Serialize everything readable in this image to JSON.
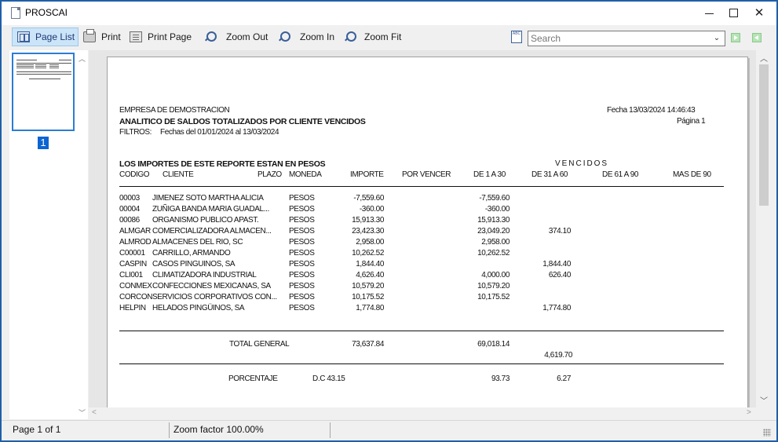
{
  "window": {
    "title": "PROSCAI"
  },
  "toolbar": {
    "page_list": "Page List",
    "print": "Print",
    "print_page": "Print Page",
    "zoom_out": "Zoom Out",
    "zoom_in": "Zoom In",
    "zoom_fit": "Zoom Fit",
    "search_placeholder": "Search",
    "spell_icon_text": "ABC"
  },
  "thumbnails": {
    "page_number": "1"
  },
  "report": {
    "company": "EMPRESA DE DEMOSTRACION",
    "title": "ANALITICO DE SALDOS  TOTALIZADOS POR CLIENTE VENCIDOS",
    "filters_label": "FILTROS:",
    "filters_value": "Fechas del 01/01/2024 al 13/03/2024",
    "date": "Fecha 13/03/2024 14:46:43",
    "page": "Página 1",
    "currency_note": "LOS IMPORTES DE ESTE REPORTE ESTAN EN PESOS",
    "vencidos_label": "V E N C I D O S",
    "columns": {
      "codigo": "CODIGO",
      "cliente": "CLIENTE",
      "plazo": "PLAZO",
      "moneda": "MONEDA",
      "importe": "IMPORTE",
      "por_vencer": "POR VENCER",
      "d1_30": "DE 1 A 30",
      "d31_60": "DE 31 A 60",
      "d61_90": "DE 61 A 90",
      "mas_90": "MAS DE 90"
    },
    "rows": [
      {
        "codigo": "00003",
        "cliente": "JIMENEZ SOTO MARTHA ALICIA",
        "moneda": "PESOS",
        "importe": "-7,559.60",
        "d1_30": "-7,559.60",
        "d31_60": ""
      },
      {
        "codigo": "00004",
        "cliente": "ZUÑIGA BANDA MARIA GUADAL...",
        "moneda": "PESOS",
        "importe": "-360.00",
        "d1_30": "-360.00",
        "d31_60": ""
      },
      {
        "codigo": "00086",
        "cliente": "ORGANISMO PUBLICO APAST.",
        "moneda": "PESOS",
        "importe": "15,913.30",
        "d1_30": "15,913.30",
        "d31_60": ""
      },
      {
        "codigo": "ALMGAR",
        "cliente": "COMERCIALIZADORA ALMACEN...",
        "moneda": "PESOS",
        "importe": "23,423.30",
        "d1_30": "23,049.20",
        "d31_60": "374.10"
      },
      {
        "codigo": "ALMROD",
        "cliente": "ALMACENES DEL RIO, SC",
        "moneda": "PESOS",
        "importe": "2,958.00",
        "d1_30": "2,958.00",
        "d31_60": ""
      },
      {
        "codigo": "C00001",
        "cliente": "CARRILLO, ARMANDO",
        "moneda": "PESOS",
        "importe": "10,262.52",
        "d1_30": "10,262.52",
        "d31_60": ""
      },
      {
        "codigo": "CASPIN",
        "cliente": "CASOS PINGUINOS, SA",
        "moneda": "PESOS",
        "importe": "1,844.40",
        "d1_30": "",
        "d31_60": "1,844.40"
      },
      {
        "codigo": "CLI001",
        "cliente": "CLIMATIZADORA INDUSTRIAL",
        "moneda": "PESOS",
        "importe": "4,626.40",
        "d1_30": "4,000.00",
        "d31_60": "626.40"
      },
      {
        "codigo": "CONMEX",
        "cliente": "CONFECCIONES MEXICANAS, SA",
        "moneda": "PESOS",
        "importe": "10,579.20",
        "d1_30": "10,579.20",
        "d31_60": ""
      },
      {
        "codigo": "CORCON",
        "cliente": "SERVICIOS CORPORATIVOS CON...",
        "moneda": "PESOS",
        "importe": "10,175.52",
        "d1_30": "10,175.52",
        "d31_60": ""
      },
      {
        "codigo": "HELPIN",
        "cliente": "HELADOS PINGÜINOS, SA",
        "moneda": "PESOS",
        "importe": "1,774.80",
        "d1_30": "",
        "d31_60": "1,774.80"
      }
    ],
    "total_label": "TOTAL GENERAL",
    "total_importe": "73,637.84",
    "total_d1_30": "69,018.14",
    "total_d31_60": "4,619.70",
    "pct_label": "PORCENTAJE",
    "pct_dc": "D.C  43.15",
    "pct_d1_30": "93.73",
    "pct_d31_60": "6.27"
  },
  "status": {
    "page_info": "Page 1 of 1",
    "zoom_info": "Zoom factor 100.00%"
  }
}
